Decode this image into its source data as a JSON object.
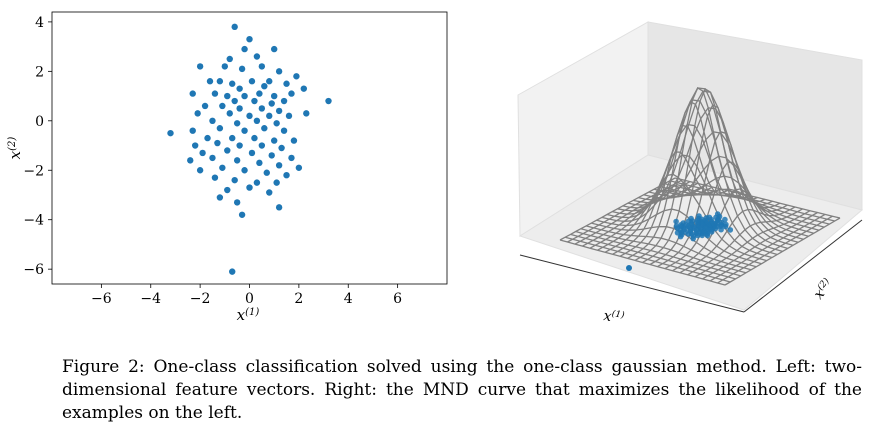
{
  "chart_data": [
    {
      "type": "scatter",
      "xlabel": "x(1)",
      "ylabel": "x(2)",
      "xlim": [
        -8,
        8
      ],
      "ylim": [
        -6.6,
        4.4
      ],
      "xticks": [
        -6,
        -4,
        -2,
        0,
        2,
        4,
        6
      ],
      "yticks": [
        4,
        2,
        0,
        -2,
        -4,
        -6
      ],
      "xtick_labels": [
        "−6",
        "−4",
        "−2",
        "0",
        "2",
        "4",
        "6"
      ],
      "ytick_labels": [
        "4",
        "2",
        "0",
        "−2",
        "−4",
        "−6"
      ],
      "grid": false,
      "color": "#1f77b4",
      "points": [
        [
          -0.6,
          3.8
        ],
        [
          0.0,
          3.3
        ],
        [
          -0.2,
          2.9
        ],
        [
          1.0,
          2.9
        ],
        [
          -0.8,
          2.5
        ],
        [
          0.3,
          2.6
        ],
        [
          -2.0,
          2.2
        ],
        [
          -1.0,
          2.2
        ],
        [
          -0.3,
          2.1
        ],
        [
          0.5,
          2.2
        ],
        [
          1.2,
          2.0
        ],
        [
          1.9,
          1.8
        ],
        [
          -1.6,
          1.6
        ],
        [
          -1.2,
          1.6
        ],
        [
          -0.7,
          1.5
        ],
        [
          0.1,
          1.6
        ],
        [
          0.8,
          1.6
        ],
        [
          1.5,
          1.5
        ],
        [
          -0.4,
          1.3
        ],
        [
          0.6,
          1.4
        ],
        [
          2.2,
          1.3
        ],
        [
          -2.3,
          1.1
        ],
        [
          -1.4,
          1.1
        ],
        [
          -0.9,
          1.0
        ],
        [
          -0.2,
          1.0
        ],
        [
          0.4,
          1.1
        ],
        [
          1.0,
          1.0
        ],
        [
          1.7,
          1.1
        ],
        [
          3.2,
          0.8
        ],
        [
          -0.6,
          0.8
        ],
        [
          0.2,
          0.8
        ],
        [
          0.9,
          0.7
        ],
        [
          1.4,
          0.8
        ],
        [
          -1.8,
          0.6
        ],
        [
          -1.1,
          0.6
        ],
        [
          -0.4,
          0.5
        ],
        [
          0.5,
          0.5
        ],
        [
          1.2,
          0.4
        ],
        [
          2.3,
          0.3
        ],
        [
          -2.1,
          0.3
        ],
        [
          -0.8,
          0.3
        ],
        [
          0.0,
          0.2
        ],
        [
          0.8,
          0.2
        ],
        [
          1.6,
          0.2
        ],
        [
          -1.5,
          0.0
        ],
        [
          -0.5,
          -0.1
        ],
        [
          0.3,
          0.0
        ],
        [
          1.1,
          -0.1
        ],
        [
          -3.2,
          -0.5
        ],
        [
          -2.3,
          -0.4
        ],
        [
          -1.2,
          -0.3
        ],
        [
          -0.2,
          -0.4
        ],
        [
          0.6,
          -0.3
        ],
        [
          1.4,
          -0.4
        ],
        [
          -1.7,
          -0.7
        ],
        [
          -0.7,
          -0.7
        ],
        [
          0.2,
          -0.7
        ],
        [
          1.0,
          -0.8
        ],
        [
          1.8,
          -0.8
        ],
        [
          -2.2,
          -1.0
        ],
        [
          -1.3,
          -0.9
        ],
        [
          -0.4,
          -1.0
        ],
        [
          0.5,
          -1.0
        ],
        [
          1.3,
          -1.1
        ],
        [
          -1.9,
          -1.3
        ],
        [
          -0.9,
          -1.2
        ],
        [
          0.1,
          -1.3
        ],
        [
          0.9,
          -1.4
        ],
        [
          1.7,
          -1.5
        ],
        [
          -2.4,
          -1.6
        ],
        [
          -1.5,
          -1.5
        ],
        [
          -0.5,
          -1.6
        ],
        [
          0.4,
          -1.7
        ],
        [
          1.2,
          -1.8
        ],
        [
          2.0,
          -1.9
        ],
        [
          -2.0,
          -2.0
        ],
        [
          -1.1,
          -1.9
        ],
        [
          -0.2,
          -2.0
        ],
        [
          0.7,
          -2.1
        ],
        [
          1.5,
          -2.2
        ],
        [
          -1.4,
          -2.3
        ],
        [
          -0.6,
          -2.4
        ],
        [
          0.3,
          -2.5
        ],
        [
          1.1,
          -2.5
        ],
        [
          -0.9,
          -2.8
        ],
        [
          0.0,
          -2.7
        ],
        [
          0.8,
          -2.9
        ],
        [
          -1.2,
          -3.1
        ],
        [
          -0.5,
          -3.3
        ],
        [
          1.2,
          -3.5
        ],
        [
          -0.3,
          -3.8
        ],
        [
          -0.7,
          -6.1
        ]
      ]
    },
    {
      "type": "surface3d",
      "description_free": true,
      "xlabel": "x(1)",
      "ylabel": "x(2)",
      "surface_color": "#808080",
      "point_color": "#1f77b4"
    }
  ],
  "caption": {
    "label": "Figure 2:",
    "text": "One-class classification solved using the one-class gaussian method. Left: two-dimensional feature vectors. Right: the MND curve that maximizes the likelihood of the examples on the left."
  }
}
